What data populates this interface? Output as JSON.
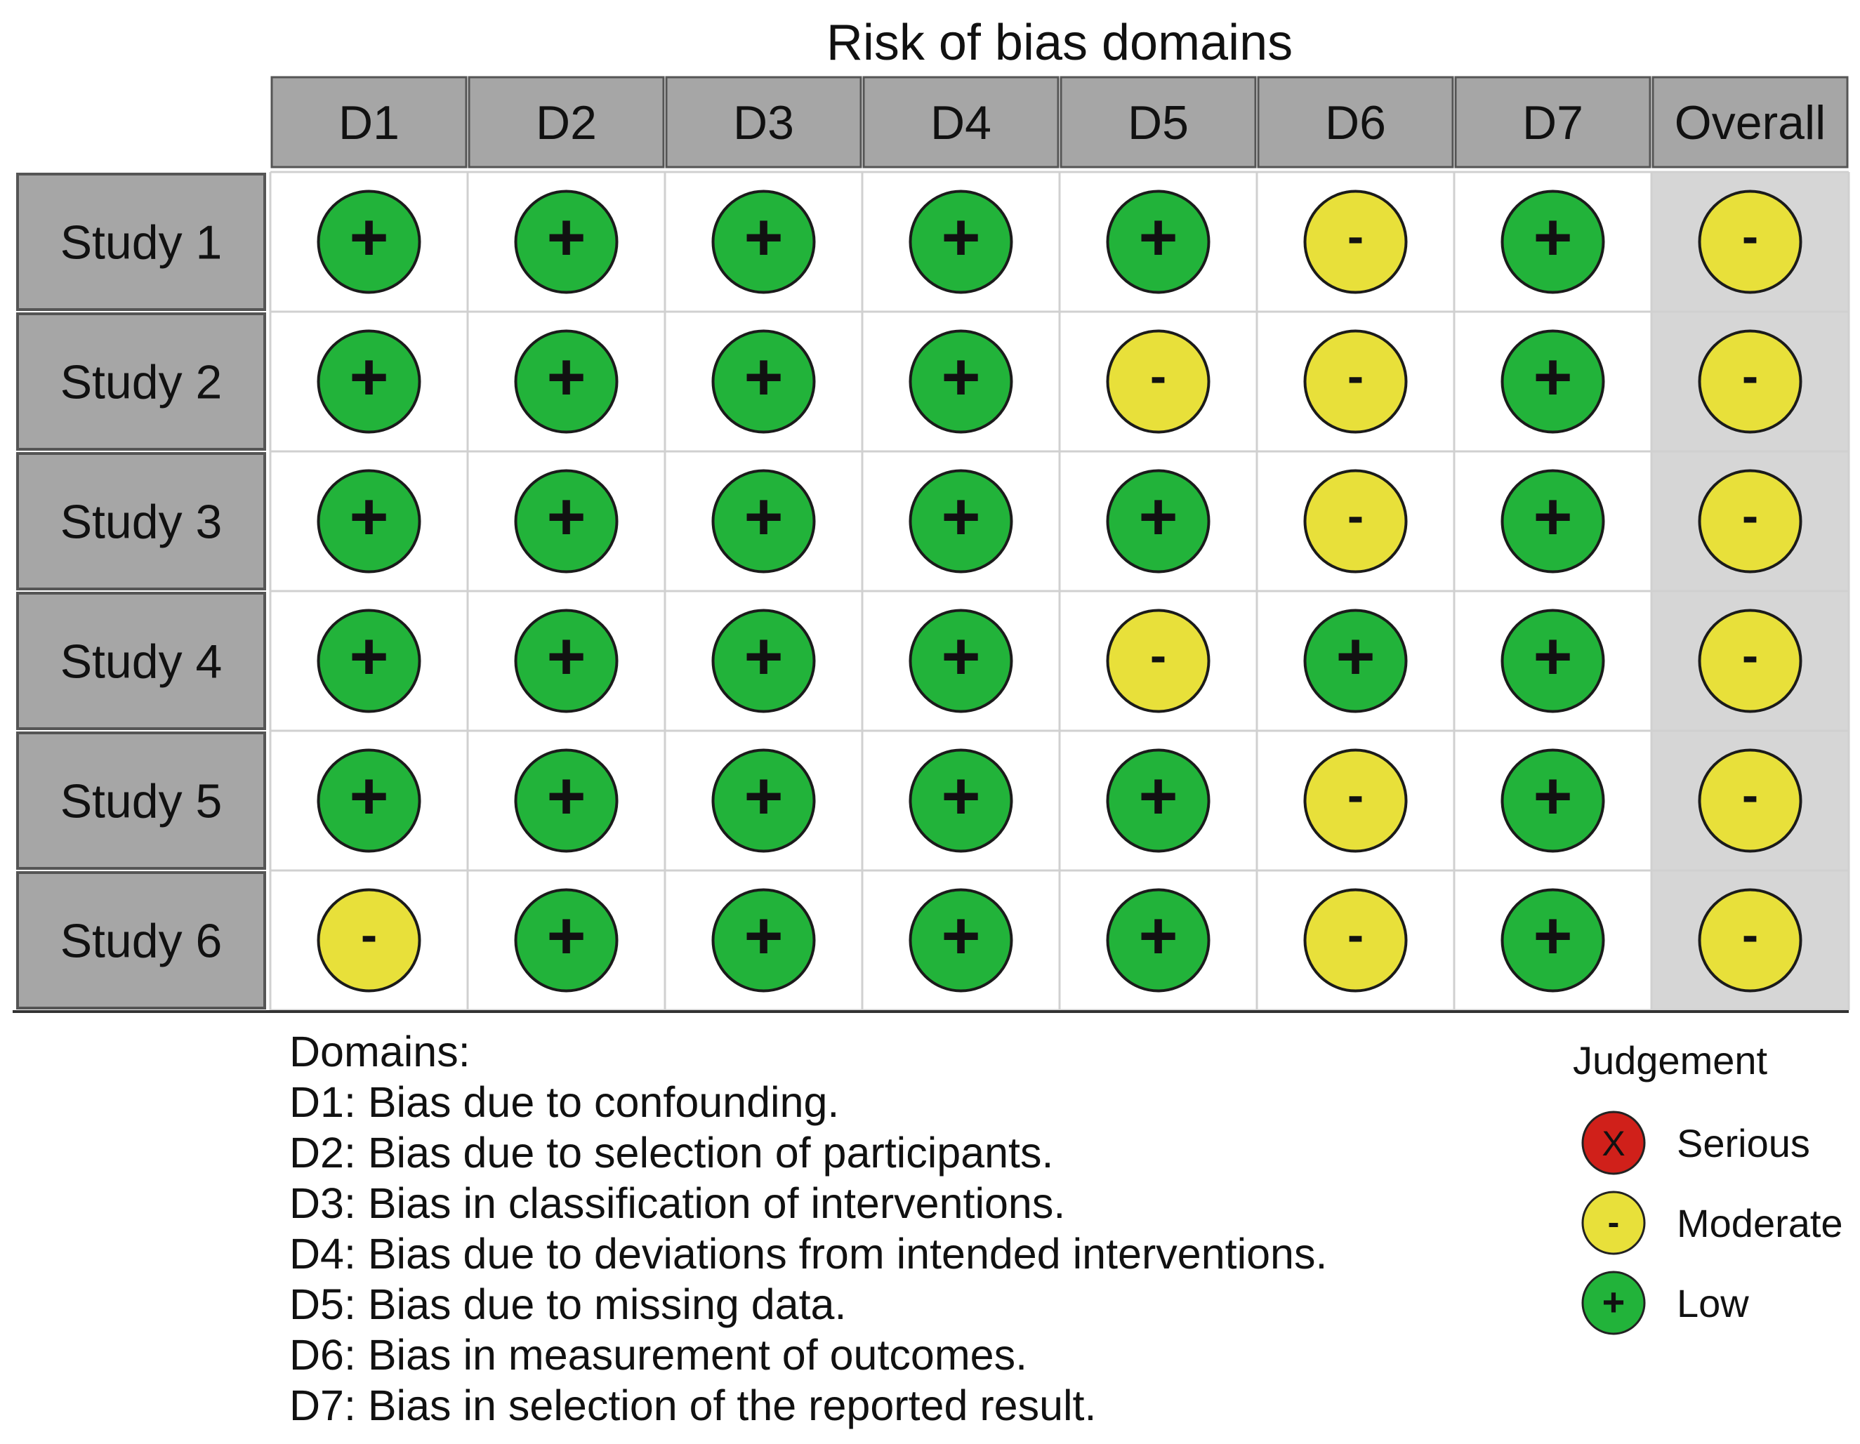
{
  "chart_data": {
    "type": "table",
    "title": "Risk of bias domains",
    "columns": [
      "D1",
      "D2",
      "D3",
      "D4",
      "D5",
      "D6",
      "D7",
      "Overall"
    ],
    "rows": [
      {
        "study": "Study 1",
        "judgements": [
          "+",
          "+",
          "+",
          "+",
          "+",
          "-",
          "+",
          "-"
        ]
      },
      {
        "study": "Study 2",
        "judgements": [
          "+",
          "+",
          "+",
          "+",
          "-",
          "-",
          "+",
          "-"
        ]
      },
      {
        "study": "Study 3",
        "judgements": [
          "+",
          "+",
          "+",
          "+",
          "+",
          "-",
          "+",
          "-"
        ]
      },
      {
        "study": "Study 4",
        "judgements": [
          "+",
          "+",
          "+",
          "+",
          "-",
          "+",
          "+",
          "-"
        ]
      },
      {
        "study": "Study 5",
        "judgements": [
          "+",
          "+",
          "+",
          "+",
          "+",
          "-",
          "+",
          "-"
        ]
      },
      {
        "study": "Study 6",
        "judgements": [
          "-",
          "+",
          "+",
          "+",
          "+",
          "-",
          "+",
          "-"
        ]
      }
    ],
    "symbols": {
      "+": "Low",
      "-": "Moderate",
      "X": "Serious"
    }
  },
  "domains": {
    "heading": "Domains:",
    "items": [
      "D1: Bias due to confounding.",
      "D2: Bias due to selection of participants.",
      "D3: Bias in classification of interventions.",
      "D4: Bias due to deviations from intended interventions.",
      "D5: Bias due to missing data.",
      "D6: Bias in measurement of outcomes.",
      "D7: Bias in selection of the reported result."
    ]
  },
  "legend": {
    "title": "Judgement",
    "items": [
      {
        "symbol": "X",
        "label": "Serious",
        "color": "#d0201a"
      },
      {
        "symbol": "-",
        "label": "Moderate",
        "color": "#e8e03a"
      },
      {
        "symbol": "+",
        "label": "Low",
        "color": "#22b33a"
      }
    ]
  },
  "colors": {
    "low": "#22b33a",
    "moderate": "#e8e03a",
    "serious": "#d0201a",
    "header_bg": "#a6a6a6",
    "overall_bg": "#d6d6d6",
    "cell_border": "#d0d0d0"
  }
}
